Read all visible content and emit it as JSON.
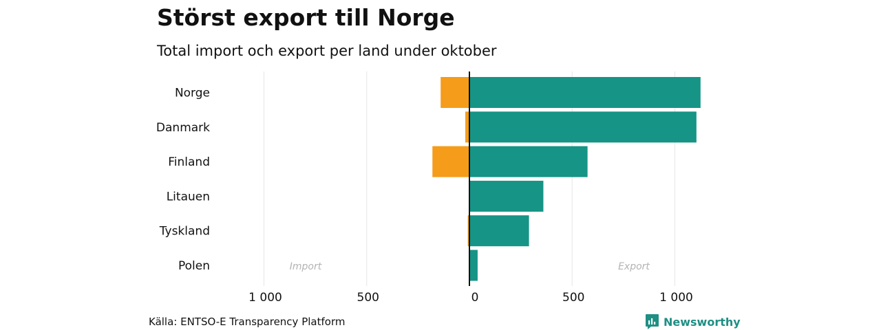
{
  "header": {
    "title": "Störst export till Norge",
    "subtitle": "Total import och export per land under oktober"
  },
  "footer": {
    "source": "Källa: ENTSO-E Transparency Platform",
    "brand": "Newsworthy"
  },
  "colors": {
    "import": "#f59c1a",
    "export": "#169486",
    "zero_line": "#111111",
    "grid": "#e6e6e6",
    "annotation": "#b3b3b3"
  },
  "icons": {
    "brand_logo": "newsworthy-chart-bubble-icon"
  },
  "chart_data": {
    "type": "bar",
    "orientation": "horizontal-diverging",
    "categories": [
      "Norge",
      "Danmark",
      "Finland",
      "Litauen",
      "Tyskland",
      "Polen"
    ],
    "series": [
      {
        "name": "Import",
        "values": [
          140,
          20,
          180,
          0,
          8,
          0
        ]
      },
      {
        "name": "Export",
        "values": [
          1125,
          1105,
          575,
          360,
          290,
          40
        ]
      }
    ],
    "xlim": [
      -1000,
      1000
    ],
    "xticks": [
      -1000,
      -500,
      0,
      500,
      1000
    ],
    "xtick_labels": [
      "1 000",
      "500",
      "0",
      "500",
      "1 000"
    ],
    "annotations": [
      "Import",
      "Export"
    ],
    "grid": true,
    "legend": "none"
  }
}
